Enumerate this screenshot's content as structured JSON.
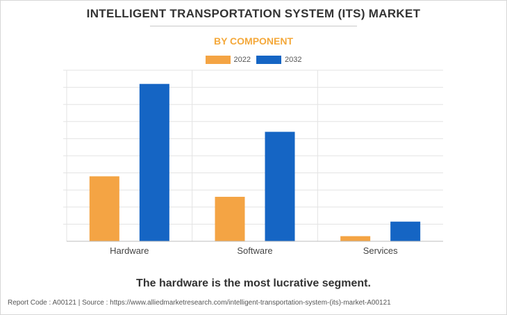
{
  "chart_data": {
    "type": "bar",
    "title": "INTELLIGENT TRANSPORTATION SYSTEM (ITS) MARKET",
    "subtitle": "BY COMPONENT",
    "categories": [
      "Hardware",
      "Software",
      "Services"
    ],
    "series": [
      {
        "name": "2022",
        "color": "#f4a444",
        "values": [
          38,
          26,
          3
        ]
      },
      {
        "name": "2032",
        "color": "#1565c4",
        "values": [
          92,
          64,
          11.5
        ]
      }
    ],
    "ylim": [
      0,
      100
    ],
    "grid": true,
    "legend_position": "top-center",
    "xlabel": "",
    "ylabel": ""
  },
  "colors": {
    "subtitle": "#f4a83a",
    "gridline": "#e3e3e3",
    "axis": "#bdbdbd"
  },
  "caption": "The hardware is the most lucrative segment.",
  "footer": "Report Code : A00121  |  Source : https://www.alliedmarketresearch.com/intelligent-transportation-system-(its)-market-A00121"
}
